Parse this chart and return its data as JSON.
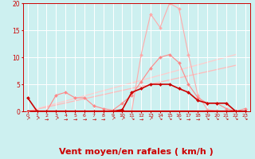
{
  "background_color": "#cdf0f0",
  "grid_color": "#ffffff",
  "xlabel": "Vent moyen/en rafales ( km/h )",
  "xlabel_color": "#cc0000",
  "xlabel_fontsize": 8,
  "xtick_color": "#cc0000",
  "ytick_color": "#cc0000",
  "xlim": [
    -0.5,
    23.5
  ],
  "ylim": [
    0,
    20
  ],
  "yticks": [
    0,
    5,
    10,
    15,
    20
  ],
  "xticks": [
    0,
    1,
    2,
    3,
    4,
    5,
    6,
    7,
    8,
    9,
    10,
    11,
    12,
    13,
    14,
    15,
    16,
    17,
    18,
    19,
    20,
    21,
    22,
    23
  ],
  "line_pink_light": {
    "comment": "lightest pink - highest peaks around 14-16",
    "x": [
      0,
      1,
      2,
      3,
      4,
      5,
      6,
      7,
      8,
      9,
      10,
      11,
      12,
      13,
      14,
      15,
      16,
      17,
      18,
      19,
      20,
      21,
      22,
      23
    ],
    "y": [
      0,
      0,
      0,
      0,
      0,
      0,
      0,
      0,
      0,
      0,
      0,
      0,
      10.5,
      18.0,
      15.5,
      20.0,
      19.0,
      10.5,
      3.0,
      0.3,
      0.1,
      0.0,
      0.0,
      0.0
    ],
    "color": "#ffaaaa",
    "linewidth": 0.8,
    "marker": "D",
    "markersize": 2.0
  },
  "line_pink_med": {
    "comment": "medium pink - peaks around 13-16 reaching ~10",
    "x": [
      0,
      1,
      2,
      3,
      4,
      5,
      6,
      7,
      8,
      9,
      10,
      11,
      12,
      13,
      14,
      15,
      16,
      17,
      18,
      19,
      20,
      21,
      22,
      23
    ],
    "y": [
      0,
      0,
      0,
      3.0,
      3.5,
      2.5,
      2.5,
      1.0,
      0.5,
      0.2,
      1.5,
      3.0,
      5.5,
      8.0,
      10.0,
      10.5,
      9.0,
      5.0,
      2.5,
      1.5,
      1.5,
      0.5,
      0.0,
      0.5
    ],
    "color": "#ff8888",
    "linewidth": 0.8,
    "marker": "D",
    "markersize": 2.0
  },
  "line_slope1": {
    "comment": "pale diagonal rising line",
    "x": [
      0,
      22
    ],
    "y": [
      0,
      10.5
    ],
    "color": "#ffcccc",
    "linewidth": 0.9
  },
  "line_slope2": {
    "comment": "second diagonal",
    "x": [
      0,
      22
    ],
    "y": [
      0,
      8.5
    ],
    "color": "#ffbbbb",
    "linewidth": 0.9
  },
  "line_dark_red": {
    "comment": "dark red main line with markers - bell shape peaking ~13-15",
    "x": [
      0,
      1,
      2,
      3,
      4,
      5,
      6,
      7,
      8,
      9,
      10,
      11,
      12,
      13,
      14,
      15,
      16,
      17,
      18,
      19,
      20,
      21,
      22,
      23
    ],
    "y": [
      2.5,
      0.0,
      0.0,
      0.0,
      0.0,
      0.0,
      0.0,
      0.0,
      0.0,
      0.0,
      0.3,
      3.5,
      4.2,
      5.0,
      5.0,
      5.0,
      4.2,
      3.5,
      2.0,
      1.5,
      1.5,
      1.5,
      0.0,
      0.0
    ],
    "color": "#cc0000",
    "linewidth": 1.2,
    "marker": "D",
    "markersize": 2.0
  },
  "line_zero": {
    "comment": "flat zero line dark red",
    "x": [
      0,
      23
    ],
    "y": [
      0,
      0
    ],
    "color": "#cc0000",
    "linewidth": 1.5
  },
  "arrow_symbols": [
    "↗",
    "↗",
    "→",
    "↗",
    "→",
    "→",
    "→",
    "→",
    "→",
    "↗",
    "↗",
    "↘",
    "→",
    "↗",
    "↘",
    "↘",
    "↘",
    "→",
    "→",
    "↘",
    "↘",
    "↘",
    "↘",
    "↘"
  ],
  "arrow_color": "#cc0000",
  "arrow_fontsize": 4.5
}
